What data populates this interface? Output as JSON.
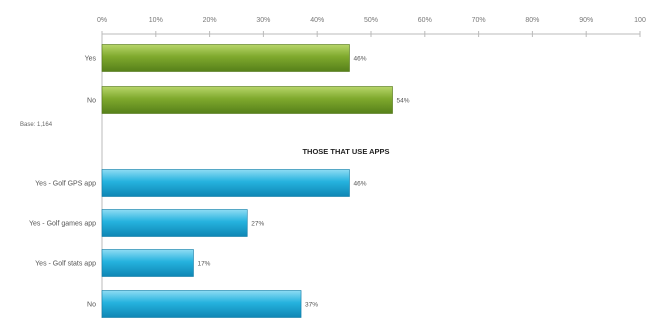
{
  "chart_data": {
    "type": "bar",
    "orientation": "horizontal",
    "x_ticks": [
      "0%",
      "10%",
      "20%",
      "30%",
      "40%",
      "50%",
      "60%",
      "70%",
      "80%",
      "90%",
      "100"
    ],
    "xlim": [
      0,
      100
    ],
    "grid": false,
    "note": "Base: 1,164",
    "groups": [
      {
        "heading": "",
        "color": "#7aa32a",
        "categories": [
          "Yes",
          "No"
        ],
        "values": [
          46,
          54
        ],
        "value_labels": [
          "46%",
          "54%"
        ]
      },
      {
        "heading": "THOSE THAT USE APPS",
        "color": "#1faed8",
        "categories": [
          "Yes - Golf GPS app",
          "Yes - Golf games app",
          "Yes - Golf stats app",
          "No"
        ],
        "values": [
          46,
          27,
          17,
          37
        ],
        "value_labels": [
          "46%",
          "27%",
          "17%",
          "37%"
        ]
      }
    ]
  }
}
